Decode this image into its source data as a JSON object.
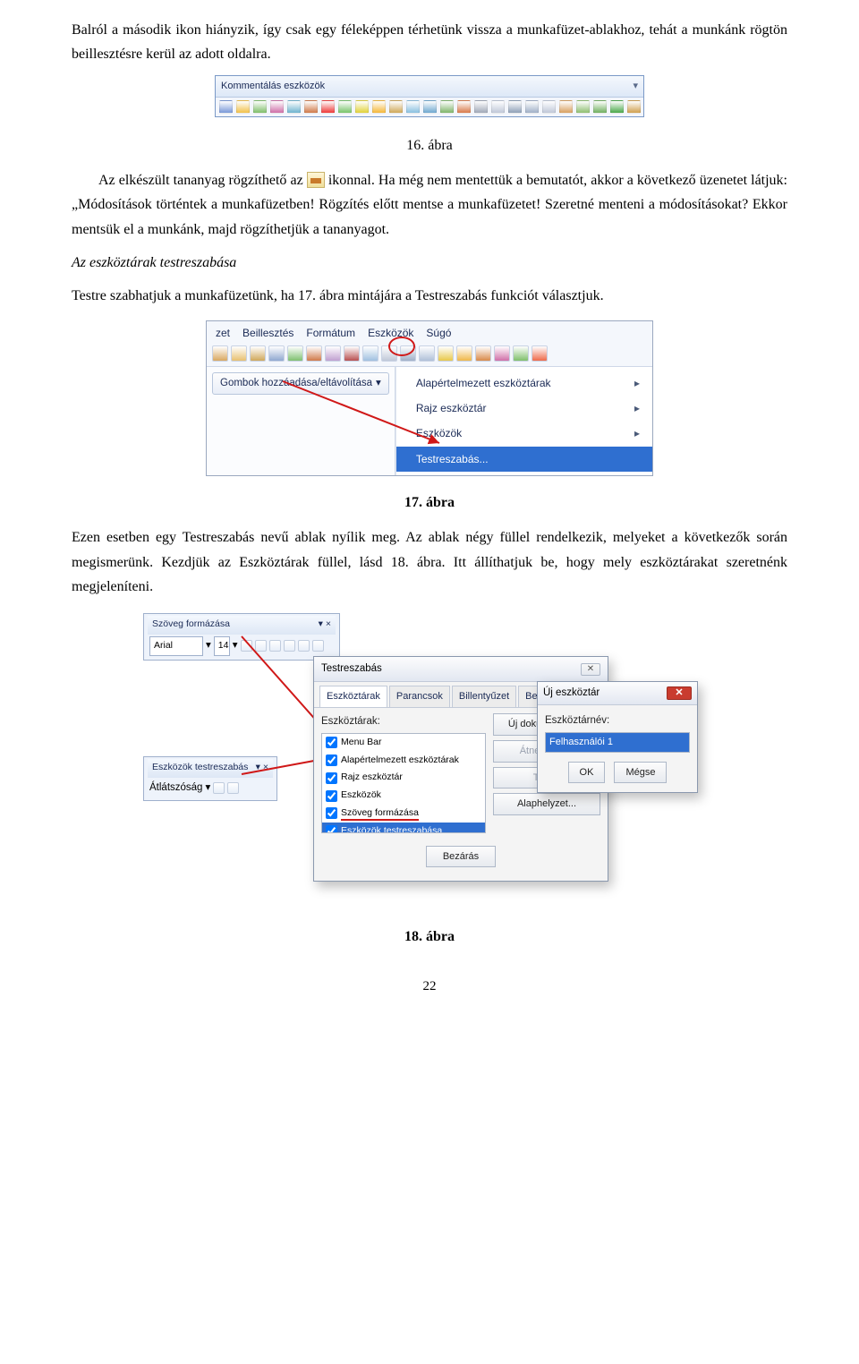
{
  "para1": "Balról a második ikon hiányzik, így csak egy féleképpen térhetünk vissza a munkafüzet-ablakhoz, tehát a munkánk rögtön beillesztésre kerül az adott oldalra.",
  "toolbar": {
    "title": "Kommentálás eszközök",
    "icon_colors": [
      "#7a99d8",
      "#f2c14a",
      "#7fbf6a",
      "#cf6fa8",
      "#6fb4cf",
      "#d07a4a",
      "#ef3a3a",
      "#78c46a",
      "#e1d23a",
      "#f5b83a",
      "#cfa85a",
      "#8ac0e0",
      "#6fa8d0",
      "#7fb56a",
      "#d97a4a",
      "#a0a8b8",
      "#c0c8d8",
      "#8fa0b8",
      "#a0b0c8",
      "#c0c8d8",
      "#d8a060",
      "#8fbf70",
      "#70b060",
      "#4aa84a",
      "#d0a050"
    ]
  },
  "cap16": "16. ábra",
  "para2a": "Az elkészült tananyag rögzíthető az ",
  "para2b": " ikonnal. Ha még nem mentettük a bemutatót, akkor a következő üzenetet látjuk: „Módosítások történtek a munkafüzetben! Rögzítés előtt mentse a munkafüzetet! Szeretné menteni a módosításokat? Ekkor mentsük el a munkánk, majd rögzíthetjük a tananyagot.",
  "heading_italic": "Az eszköztárak testreszabása",
  "para3": "Testre szabhatjuk a munkafüzetünk, ha 17. ábra mintájára a Testreszabás funkciót választjuk.",
  "menu": {
    "items": [
      "zet",
      "Beillesztés",
      "Formátum",
      "Eszközök",
      "Súgó"
    ],
    "dropdown_btn": "Gombok hozzáadása/eltávolítása",
    "rows": [
      {
        "label": "Alapértelmezett eszköztárak",
        "arrow": true,
        "sel": false
      },
      {
        "label": "Rajz eszköztár",
        "arrow": true,
        "sel": false
      },
      {
        "label": "Eszközök",
        "arrow": true,
        "sel": false
      },
      {
        "label": "Testreszabás...",
        "arrow": false,
        "sel": true
      }
    ]
  },
  "cap17": "17. ábra",
  "para4": "Ezen esetben egy Testreszabás nevű ablak nyílik meg. Az ablak négy füllel rendelkezik, melyeket a következők során megismerünk. Kezdjük az Eszköztárak füllel, lásd 18. ábra. Itt állíthatjuk be, hogy mely eszköztárakat szeretnénk megjeleníteni.",
  "format_toolbar": {
    "title": "Szöveg formázása",
    "font": "Arial",
    "size": "14"
  },
  "tools_toolbar": {
    "title": "Eszközök testreszabás",
    "label": "Átlátszóság"
  },
  "dialog": {
    "title": "Testreszabás",
    "tabs": [
      "Eszköztárak",
      "Parancsok",
      "Billentyűzet",
      "Beállítások"
    ],
    "label": "Eszköztárak:",
    "list": [
      "Menu Bar",
      "Alapértelmezett eszköztárak",
      "Rajz eszköztár",
      "Eszközök",
      "Szöveg formázása",
      "Eszközök testreszabása"
    ],
    "btns": [
      "Új dokumentum...",
      "Átnevezés...",
      "Törlés",
      "Alaphelyzet..."
    ],
    "close": "Bezárás"
  },
  "dialog2": {
    "title": "Új eszköztár",
    "label": "Eszköztárnév:",
    "value": "Felhasználói 1",
    "ok": "OK",
    "cancel": "Mégse"
  },
  "cap18": "18. ábra",
  "page_num": "22"
}
